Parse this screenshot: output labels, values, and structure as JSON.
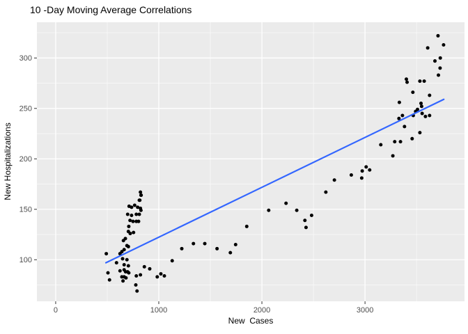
{
  "chart_data": {
    "type": "scatter",
    "title": "10 -Day Moving Average Correlations",
    "xlabel": "New  Cases",
    "ylabel": "New Hospitalizations",
    "x_ticks": [
      0,
      1000,
      2000,
      3000
    ],
    "y_ticks": [
      100,
      150,
      200,
      250,
      300
    ],
    "x_minor_ticks": [
      500,
      1500,
      2500,
      3500
    ],
    "y_minor_ticks": [
      75,
      125,
      175,
      225,
      275,
      325
    ],
    "x_domain": [
      -182,
      3965
    ],
    "y_domain": [
      58.8,
      335.4
    ],
    "grid": true,
    "legend": "none",
    "colors": {
      "panel_bg": "#EBEBEB",
      "grid_major": "#FFFFFF",
      "grid_minor": "rgba(255,255,255,0.6)",
      "point": "#000000",
      "trend": "#3366FF",
      "tick_mark": "#333333",
      "tick_text": "#4d4d4d"
    },
    "point_radius": 2.5,
    "trend_line": {
      "x1": 487,
      "y1": 97,
      "x2": 3764,
      "y2": 259
    },
    "points": [
      [
        491,
        106
      ],
      [
        507,
        87
      ],
      [
        522,
        80
      ],
      [
        590,
        97
      ],
      [
        624,
        106
      ],
      [
        624,
        89
      ],
      [
        642,
        108
      ],
      [
        642,
        83
      ],
      [
        649,
        101
      ],
      [
        653,
        79
      ],
      [
        657,
        119
      ],
      [
        664,
        110
      ],
      [
        664,
        95
      ],
      [
        664,
        90
      ],
      [
        664,
        83
      ],
      [
        676,
        121
      ],
      [
        678,
        88
      ],
      [
        682,
        82
      ],
      [
        691,
        114
      ],
      [
        691,
        100
      ],
      [
        698,
        145
      ],
      [
        698,
        88
      ],
      [
        705,
        128
      ],
      [
        705,
        113
      ],
      [
        705,
        94
      ],
      [
        709,
        133
      ],
      [
        709,
        87
      ],
      [
        712,
        153
      ],
      [
        721,
        139
      ],
      [
        723,
        126
      ],
      [
        736,
        152
      ],
      [
        736,
        144
      ],
      [
        750,
        138
      ],
      [
        755,
        127
      ],
      [
        766,
        154
      ],
      [
        777,
        75
      ],
      [
        782,
        145
      ],
      [
        782,
        138
      ],
      [
        782,
        84
      ],
      [
        789,
        69
      ],
      [
        795,
        152
      ],
      [
        804,
        138
      ],
      [
        811,
        159
      ],
      [
        811,
        145
      ],
      [
        816,
        159
      ],
      [
        822,
        167
      ],
      [
        822,
        151
      ],
      [
        822,
        85
      ],
      [
        827,
        164
      ],
      [
        827,
        149
      ],
      [
        829,
        164
      ],
      [
        860,
        93
      ],
      [
        912,
        91
      ],
      [
        985,
        83
      ],
      [
        1020,
        86
      ],
      [
        1054,
        84
      ],
      [
        1130,
        99
      ],
      [
        1223,
        111
      ],
      [
        1336,
        116
      ],
      [
        1446,
        116
      ],
      [
        1565,
        111
      ],
      [
        1694,
        107
      ],
      [
        1745,
        115
      ],
      [
        1853,
        133
      ],
      [
        2066,
        149
      ],
      [
        2234,
        156
      ],
      [
        2338,
        149
      ],
      [
        2417,
        139
      ],
      [
        2428,
        132
      ],
      [
        2482,
        144
      ],
      [
        2620,
        167
      ],
      [
        2703,
        179
      ],
      [
        2867,
        184
      ],
      [
        2968,
        181
      ],
      [
        2973,
        188
      ],
      [
        3011,
        192
      ],
      [
        3045,
        189
      ],
      [
        3153,
        214
      ],
      [
        3270,
        203
      ],
      [
        3288,
        217
      ],
      [
        3329,
        240
      ],
      [
        3333,
        256
      ],
      [
        3344,
        217
      ],
      [
        3363,
        243
      ],
      [
        3383,
        232
      ],
      [
        3401,
        279
      ],
      [
        3408,
        276
      ],
      [
        3457,
        220
      ],
      [
        3464,
        266
      ],
      [
        3468,
        243
      ],
      [
        3491,
        247
      ],
      [
        3509,
        249
      ],
      [
        3532,
        277
      ],
      [
        3532,
        226
      ],
      [
        3543,
        255
      ],
      [
        3549,
        252
      ],
      [
        3554,
        245
      ],
      [
        3574,
        277
      ],
      [
        3586,
        242
      ],
      [
        3608,
        310
      ],
      [
        3626,
        263
      ],
      [
        3626,
        243
      ],
      [
        3678,
        297
      ],
      [
        3708,
        322
      ],
      [
        3712,
        283
      ],
      [
        3728,
        290
      ],
      [
        3730,
        300
      ],
      [
        3762,
        313
      ]
    ]
  }
}
